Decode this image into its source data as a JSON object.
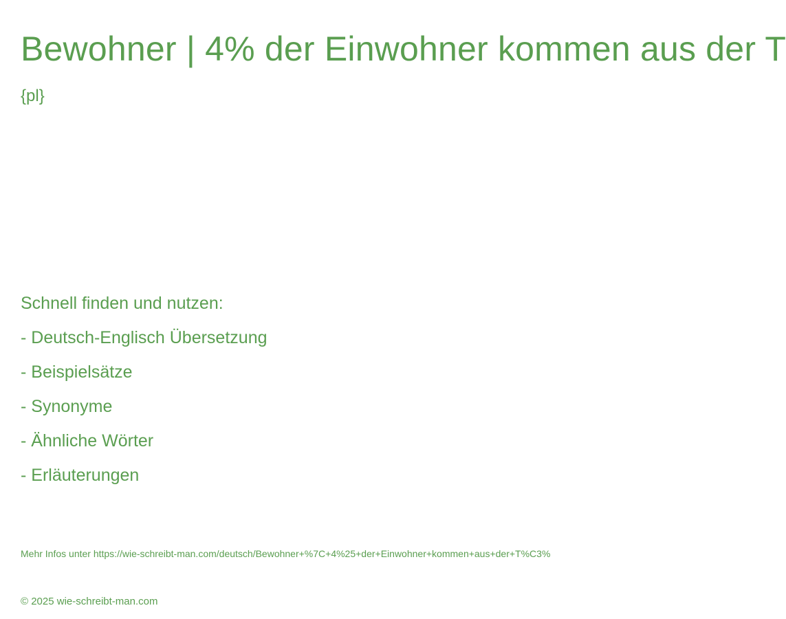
{
  "header": {
    "title": "Bewohner | 4% der Einwohner kommen aus der T",
    "subtitle": "{pl}"
  },
  "features": {
    "heading": "Schnell finden und nutzen:",
    "items": [
      "- Deutsch-Englisch Übersetzung",
      "- Beispielsätze",
      "- Synonyme",
      "- Ähnliche Wörter",
      "- Erläuterungen"
    ]
  },
  "info": {
    "text": "Mehr Infos unter https://wie-schreibt-man.com/deutsch/Bewohner+%7C+4%25+der+Einwohner+kommen+aus+der+T%C3%"
  },
  "footer": {
    "copyright": "© 2025 wie-schreibt-man.com"
  },
  "colors": {
    "text": "#5a9e50",
    "background": "#ffffff"
  }
}
